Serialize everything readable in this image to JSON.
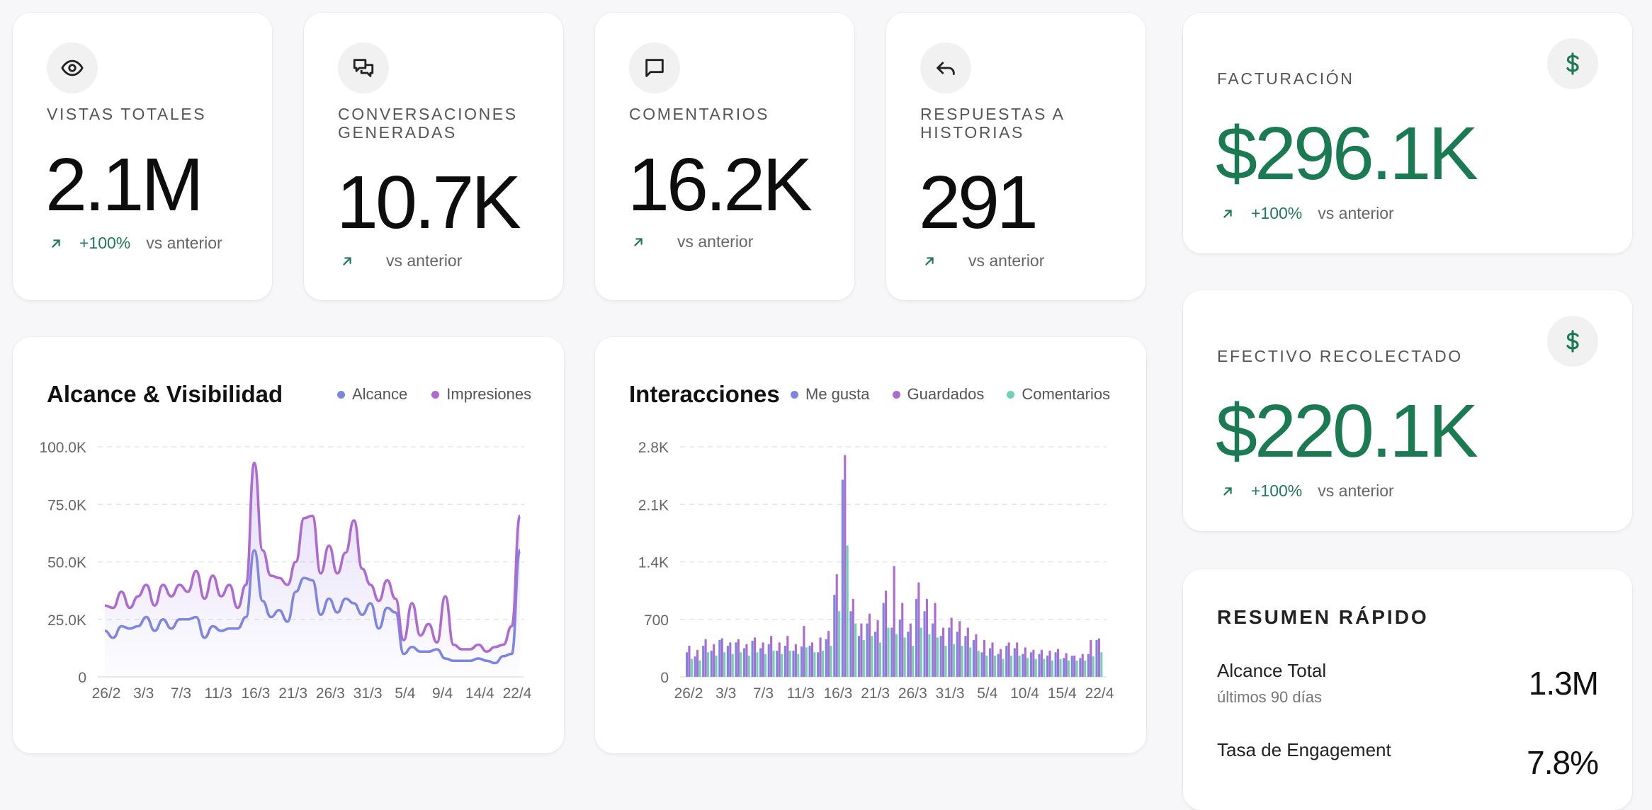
{
  "metrics": [
    {
      "label": "VISTAS TOTALES",
      "value": "2.1M",
      "pct": "+100%",
      "vs": "vs anterior",
      "icon": "eye-icon"
    },
    {
      "label": "CONVERSACIONES GENERADAS",
      "value": "10.7K",
      "pct": "",
      "vs": "vs anterior",
      "icon": "chat-bubbles-icon"
    },
    {
      "label": "COMENTARIOS",
      "value": "16.2K",
      "pct": "",
      "vs": "vs anterior",
      "icon": "comment-icon"
    },
    {
      "label": "RESPUESTAS A HISTORIAS",
      "value": "291",
      "pct": "",
      "vs": "vs anterior",
      "icon": "reply-icon"
    }
  ],
  "revenue": {
    "billing": {
      "label": "FACTURACIÓN",
      "value": "$296.1K",
      "pct": "+100%",
      "vs": "vs anterior",
      "icon": "dollar-icon"
    },
    "cash": {
      "label": "EFECTIVO RECOLECTADO",
      "value": "$220.1K",
      "pct": "+100%",
      "vs": "vs anterior",
      "icon": "dollar-icon"
    }
  },
  "summary": {
    "title": "RESUMEN RÁPIDO",
    "rows": [
      {
        "label": "Alcance Total",
        "sub": "últimos 90 días",
        "value": "1.3M"
      },
      {
        "label": "Tasa de Engagement",
        "sub": "",
        "value": "7.8%"
      }
    ]
  },
  "colors": {
    "accent_green": "#1a7a52",
    "alcance": "#7b86e2",
    "impresiones": "#ad6ad1",
    "comentarios": "#6fd3b0"
  },
  "chart_data": [
    {
      "type": "area",
      "title": "Alcance & Visibilidad",
      "legend": [
        "Alcance",
        "Impresiones"
      ],
      "y_ticks": [
        "100.0K",
        "75.0K",
        "50.0K",
        "25.0K",
        "0"
      ],
      "ylim": [
        0,
        100000
      ],
      "x_ticks": [
        "26/2",
        "3/3",
        "7/3",
        "11/3",
        "16/3",
        "21/3",
        "26/3",
        "31/3",
        "5/4",
        "9/4",
        "14/4",
        "22/4"
      ],
      "series": [
        {
          "name": "Alcance",
          "values": [
            20000,
            17000,
            22000,
            21000,
            22000,
            26000,
            20000,
            25000,
            21000,
            25000,
            25000,
            26000,
            17000,
            22000,
            20000,
            21000,
            21000,
            26000,
            55000,
            33000,
            26000,
            29000,
            24000,
            37000,
            43000,
            42000,
            27000,
            34000,
            28000,
            34000,
            32000,
            27000,
            32000,
            21000,
            30000,
            28000,
            10000,
            13000,
            11000,
            11000,
            12000,
            8000,
            7000,
            7000,
            7000,
            8000,
            7000,
            6000,
            9000,
            10000,
            55000
          ]
        },
        {
          "name": "Impresiones",
          "values": [
            31000,
            30000,
            37000,
            30000,
            35000,
            40000,
            31000,
            40000,
            35000,
            40000,
            37000,
            46000,
            34000,
            44000,
            35000,
            40000,
            30000,
            40000,
            93000,
            55000,
            44000,
            43000,
            40000,
            50000,
            69000,
            70000,
            45000,
            57000,
            45000,
            54000,
            68000,
            47000,
            40000,
            33000,
            42000,
            34000,
            16000,
            32000,
            18000,
            23000,
            15000,
            35000,
            14000,
            12000,
            12000,
            14000,
            11000,
            13000,
            14000,
            22000,
            70000
          ]
        }
      ]
    },
    {
      "type": "bar",
      "title": "Interacciones",
      "legend": [
        "Me gusta",
        "Guardados",
        "Comentarios"
      ],
      "y_ticks": [
        "2.8K",
        "2.1K",
        "1.4K",
        "700",
        "0"
      ],
      "ylim": [
        0,
        2800
      ],
      "x_ticks": [
        "26/2",
        "3/3",
        "7/3",
        "11/3",
        "16/3",
        "21/3",
        "26/3",
        "31/3",
        "5/4",
        "10/4",
        "15/4",
        "22/4"
      ],
      "series": [
        {
          "name": "Me gusta",
          "values": [
            300,
            250,
            380,
            320,
            450,
            380,
            420,
            350,
            440,
            350,
            400,
            320,
            380,
            320,
            370,
            380,
            300,
            460,
            1000,
            2400,
            800,
            500,
            650,
            550,
            900,
            600,
            700,
            550,
            950,
            800,
            650,
            500,
            600,
            550,
            500,
            450,
            300,
            350,
            280,
            380,
            350,
            280,
            300,
            280,
            260,
            300,
            230,
            260,
            230,
            280,
            450
          ]
        },
        {
          "name": "Guardados",
          "values": [
            380,
            330,
            460,
            400,
            470,
            420,
            460,
            400,
            480,
            420,
            500,
            420,
            500,
            400,
            620,
            420,
            480,
            560,
            1250,
            2700,
            950,
            650,
            770,
            690,
            1050,
            1350,
            900,
            650,
            1150,
            950,
            900,
            600,
            720,
            680,
            600,
            520,
            450,
            420,
            340,
            420,
            420,
            360,
            330,
            330,
            320,
            340,
            290,
            260,
            280,
            450,
            470
          ]
        },
        {
          "name": "Comentarios",
          "values": [
            220,
            200,
            300,
            260,
            300,
            280,
            300,
            260,
            300,
            280,
            320,
            280,
            320,
            280,
            360,
            300,
            320,
            380,
            800,
            1600,
            650,
            450,
            500,
            420,
            600,
            520,
            480,
            380,
            600,
            520,
            480,
            380,
            400,
            380,
            360,
            320,
            260,
            260,
            220,
            260,
            260,
            230,
            220,
            220,
            200,
            220,
            200,
            200,
            200,
            250,
            300
          ]
        }
      ]
    }
  ]
}
